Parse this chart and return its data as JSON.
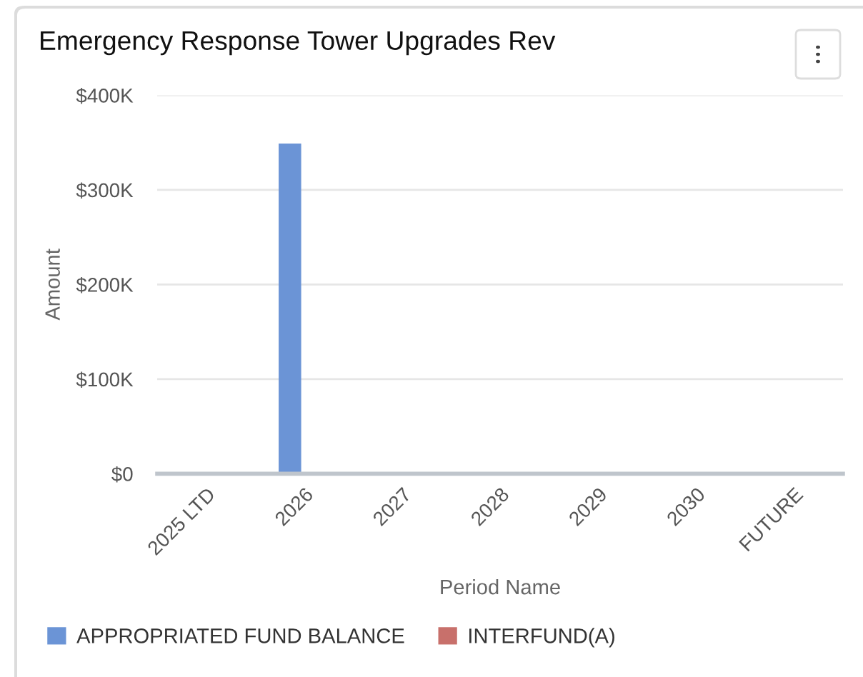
{
  "chart_data": {
    "type": "bar",
    "title": "Emergency Response Tower Upgrades Rev",
    "xlabel": "Period Name",
    "ylabel": "Amount",
    "categories": [
      "2025 LTD",
      "2026",
      "2027",
      "2028",
      "2029",
      "2030",
      "FUTURE"
    ],
    "series": [
      {
        "name": "APPROPRIATED FUND BALANCE",
        "color": "#6b94d6",
        "values": [
          null,
          349000,
          null,
          null,
          null,
          null,
          null
        ]
      },
      {
        "name": "INTERFUND(A)",
        "color": "#c8706b",
        "values": [
          null,
          null,
          null,
          null,
          null,
          null,
          null
        ]
      }
    ],
    "ylim": [
      0,
      400000
    ],
    "yticks": [
      {
        "value": 0,
        "label": "$0"
      },
      {
        "value": 100000,
        "label": "$100K"
      },
      {
        "value": 200000,
        "label": "$200K"
      },
      {
        "value": 300000,
        "label": "$300K"
      },
      {
        "value": 400000,
        "label": "$400K"
      }
    ],
    "grid": "y",
    "legend": "bottom"
  }
}
